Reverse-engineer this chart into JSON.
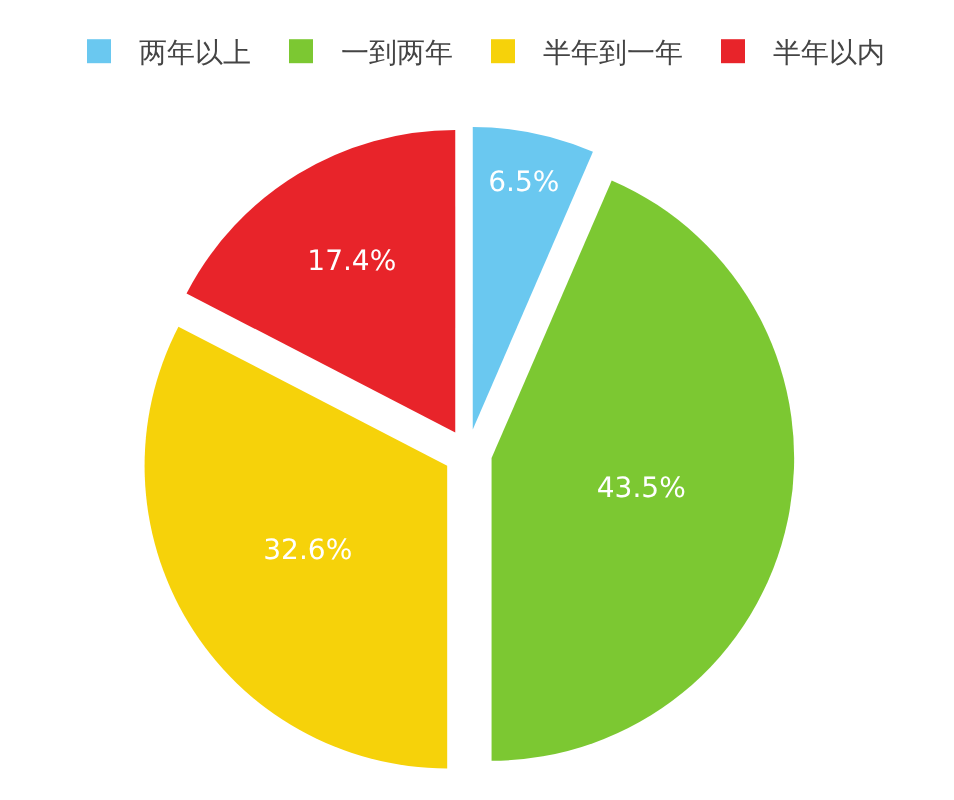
{
  "chart_data": {
    "type": "pie",
    "categories": [
      "两年以上",
      "一到两年",
      "半年到一年",
      "半年以内"
    ],
    "values": [
      6.5,
      43.5,
      32.6,
      17.4
    ],
    "colors": [
      "#6ac8f0",
      "#7cc832",
      "#f6d20a",
      "#e8242a"
    ],
    "value_labels": [
      "6.5%",
      "43.5%",
      "32.6%",
      "17.4%"
    ],
    "legend": "top"
  }
}
